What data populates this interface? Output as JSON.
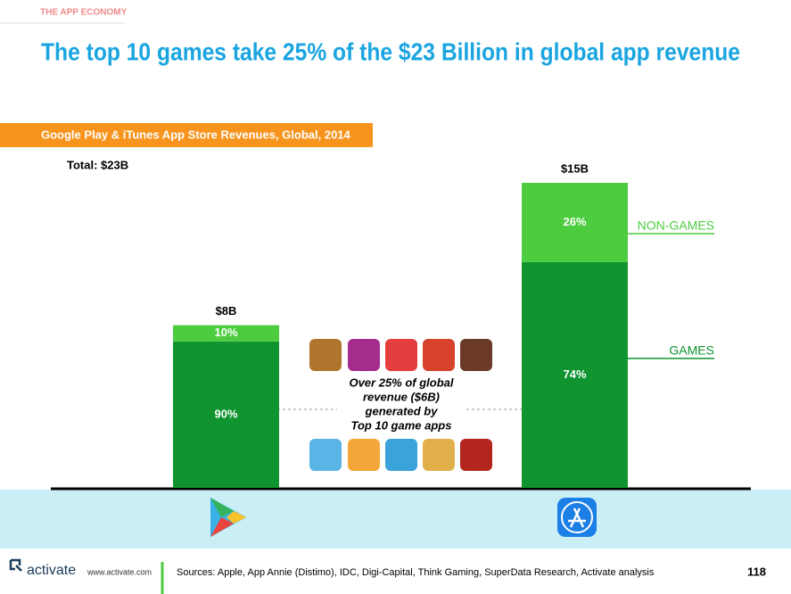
{
  "header": "THE APP ECONOMY",
  "chart_data": {
    "type": "bar",
    "title": "The top 10 games take 25% of the $23 Billion in global app revenue",
    "subtitle": "Google Play & iTunes App Store Revenues, Global, 2014",
    "total_label": "Total: $23B",
    "categories": [
      null,
      null
    ],
    "totals": [
      8,
      15
    ],
    "totals_value_labels": [
      "$8B",
      "$15B"
    ],
    "series": [
      {
        "name": "GAMES",
        "color": "#0f9430",
        "values": [
          90,
          74
        ],
        "value_labels": [
          "90%",
          "74%"
        ]
      },
      {
        "name": "NON-GAMES",
        "color": "#4dcc3f",
        "values": [
          10,
          26
        ],
        "value_labels": [
          "10%",
          "26%"
        ]
      }
    ],
    "annotation": [
      "Over 25% of global",
      "revenue ($6B)",
      "generated by",
      "Top 10 game apps"
    ]
  },
  "footer": {
    "brand": "activate",
    "url": "www.activate.com",
    "sources": "Sources: Apple, App Annie (Distimo), IDC, Digi-Capital, Think Gaming, SuperData Research, Activate analysis",
    "page": "118"
  }
}
